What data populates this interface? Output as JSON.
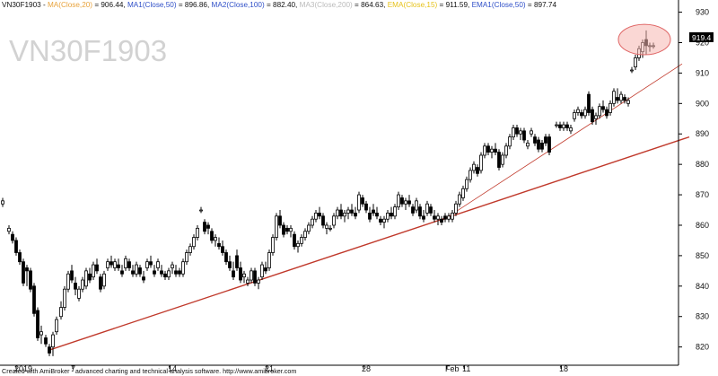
{
  "colors": {
    "background": "#ffffff",
    "trendline": "#c0392b",
    "highlight_fill": "#f5b7b1",
    "highlight_stroke": "#e06666",
    "candle": "#000000",
    "price_label_bg": "#000000",
    "label_black": "#111111",
    "label_ma1": "#e8a33d",
    "label_ma_blue": "#3050c8",
    "label_ma3": "#bbbbbb",
    "label_ema": "#e6c21a",
    "axis_line": "#000000",
    "watermark": "#d2d2d2"
  },
  "header": {
    "parts": [
      {
        "text": "VN30F1903 - ",
        "color": "#111111"
      },
      {
        "text": "MA(Close,20)",
        "color": "#e8a33d"
      },
      {
        "text": " = 906.44, ",
        "color": "#111111"
      },
      {
        "text": "MA1(Close,50)",
        "color": "#3050c8"
      },
      {
        "text": " = 896.86, ",
        "color": "#111111"
      },
      {
        "text": "MA2(Close,100)",
        "color": "#3050c8"
      },
      {
        "text": " = 882.40, ",
        "color": "#111111"
      },
      {
        "text": "MA3(Close,200)",
        "color": "#bbbbbb"
      },
      {
        "text": " = 864.63, ",
        "color": "#111111"
      },
      {
        "text": "EMA(Close,15)",
        "color": "#e6c21a"
      },
      {
        "text": " = 911.59, ",
        "color": "#111111"
      },
      {
        "text": "EMA1(Close,50)",
        "color": "#3050c8"
      },
      {
        "text": " = 897.74",
        "color": "#111111"
      }
    ]
  },
  "watermark": "VN30F1903",
  "price_label": "919.4",
  "footer": "Created with AmiBroker - advanced charting and technical analysis software. http://www.amibroker.com",
  "chart_data": {
    "type": "candlestick",
    "symbol": "VN30F1903",
    "y_axis": {
      "side": "right",
      "range": [
        814,
        934
      ],
      "ticks": [
        "820",
        "830",
        "840",
        "850",
        "860",
        "870",
        "880",
        "890",
        "900",
        "910",
        "920",
        "930"
      ]
    },
    "x_axis": {
      "range": [
        0,
        756
      ],
      "ticks": [
        {
          "label": "2019",
          "pos": 18
        },
        {
          "label": "7",
          "pos": 81
        },
        {
          "label": "14",
          "pos": 189
        },
        {
          "label": "21",
          "pos": 297
        },
        {
          "label": "28",
          "pos": 405
        },
        {
          "label": "Feb",
          "pos": 498
        },
        {
          "label": "11",
          "pos": 517
        },
        {
          "label": "18",
          "pos": 625
        }
      ]
    },
    "candles": [
      [
        3,
        867,
        869,
        866,
        868
      ],
      [
        10,
        858,
        860,
        857,
        859
      ],
      [
        14,
        857,
        858,
        854,
        855
      ],
      [
        18,
        855,
        856,
        850,
        851
      ],
      [
        22,
        851,
        852,
        847,
        848
      ],
      [
        26,
        848,
        849,
        840,
        841
      ],
      [
        30,
        846,
        847,
        840,
        845
      ],
      [
        34,
        845,
        846,
        838,
        839
      ],
      [
        38,
        840,
        841,
        830,
        831
      ],
      [
        42,
        832,
        833,
        822,
        823
      ],
      [
        46,
        824,
        827,
        821,
        825
      ],
      [
        51,
        823,
        824,
        820,
        821
      ],
      [
        55,
        820,
        821,
        817,
        818
      ],
      [
        59,
        820,
        825,
        817,
        824
      ],
      [
        63,
        825,
        830,
        824,
        829
      ],
      [
        68,
        830,
        835,
        829,
        833
      ],
      [
        72,
        833,
        840,
        832,
        839
      ],
      [
        76,
        839,
        845,
        838,
        844
      ],
      [
        80,
        845,
        847,
        841,
        842
      ],
      [
        84,
        841,
        843,
        837,
        839
      ],
      [
        88,
        836,
        840,
        835,
        839
      ],
      [
        92,
        839,
        843,
        838,
        842
      ],
      [
        96,
        840,
        846,
        839,
        845
      ],
      [
        100,
        844,
        846,
        841,
        842
      ],
      [
        104,
        843,
        848,
        842,
        847
      ],
      [
        108,
        847,
        849,
        844,
        845
      ],
      [
        112,
        843,
        844,
        838,
        839
      ],
      [
        116,
        840,
        845,
        839,
        844
      ],
      [
        120,
        846,
        849,
        845,
        848
      ],
      [
        124,
        848,
        850,
        846,
        847
      ],
      [
        128,
        846,
        849,
        845,
        848
      ],
      [
        132,
        847,
        849,
        845,
        846
      ],
      [
        136,
        845,
        847,
        843,
        844
      ],
      [
        140,
        846,
        850,
        845,
        849
      ],
      [
        144,
        848,
        849,
        845,
        846
      ],
      [
        148,
        845,
        847,
        843,
        844
      ],
      [
        152,
        844,
        848,
        843,
        847
      ],
      [
        156,
        846,
        847,
        843,
        844
      ],
      [
        160,
        843,
        845,
        841,
        842
      ],
      [
        164,
        846,
        849,
        845,
        848
      ],
      [
        168,
        848,
        850,
        846,
        847
      ],
      [
        172,
        845,
        847,
        843,
        844
      ],
      [
        176,
        846,
        849,
        845,
        848
      ],
      [
        180,
        845,
        847,
        843,
        844
      ],
      [
        184,
        844,
        845,
        842,
        843
      ],
      [
        188,
        843,
        846,
        842,
        845
      ],
      [
        192,
        846,
        848,
        844,
        847
      ],
      [
        196,
        845,
        847,
        843,
        844
      ],
      [
        200,
        845,
        846,
        843,
        844
      ],
      [
        204,
        844,
        849,
        843,
        848
      ],
      [
        208,
        848,
        852,
        847,
        851
      ],
      [
        212,
        851,
        854,
        850,
        853
      ],
      [
        216,
        853,
        857,
        852,
        856
      ],
      [
        220,
        856,
        860,
        855,
        859
      ],
      [
        224,
        865,
        866,
        864,
        865
      ],
      [
        228,
        861,
        862,
        857,
        858
      ],
      [
        232,
        860,
        861,
        857,
        859
      ],
      [
        236,
        858,
        859,
        854,
        855
      ],
      [
        240,
        855,
        857,
        853,
        856
      ],
      [
        244,
        854,
        856,
        852,
        853
      ],
      [
        248,
        853,
        855,
        850,
        851
      ],
      [
        252,
        851,
        852,
        847,
        848
      ],
      [
        256,
        848,
        850,
        845,
        846
      ],
      [
        260,
        845,
        848,
        842,
        843
      ],
      [
        264,
        850,
        852,
        845,
        846
      ],
      [
        268,
        846,
        848,
        841,
        842
      ],
      [
        272,
        843,
        845,
        841,
        844
      ],
      [
        276,
        841,
        843,
        840,
        842
      ],
      [
        280,
        842,
        846,
        841,
        845
      ],
      [
        284,
        845,
        846,
        840,
        841
      ],
      [
        288,
        841,
        843,
        839,
        842
      ],
      [
        292,
        843,
        848,
        842,
        847
      ],
      [
        296,
        846,
        848,
        844,
        845
      ],
      [
        300,
        846,
        852,
        845,
        851
      ],
      [
        304,
        851,
        857,
        850,
        856
      ],
      [
        308,
        856,
        864,
        855,
        863
      ],
      [
        312,
        863,
        865,
        859,
        860
      ],
      [
        316,
        860,
        861,
        856,
        857
      ],
      [
        320,
        859,
        860,
        857,
        858
      ],
      [
        324,
        858,
        860,
        856,
        859
      ],
      [
        328,
        857,
        858,
        852,
        853
      ],
      [
        332,
        853,
        855,
        851,
        854
      ],
      [
        336,
        854,
        857,
        853,
        856
      ],
      [
        340,
        856,
        859,
        855,
        858
      ],
      [
        344,
        858,
        861,
        857,
        860
      ],
      [
        348,
        860,
        863,
        859,
        862
      ],
      [
        352,
        862,
        865,
        861,
        864
      ],
      [
        356,
        864,
        866,
        862,
        863
      ],
      [
        360,
        863,
        864,
        859,
        860
      ],
      [
        364,
        859,
        861,
        857,
        860
      ],
      [
        368,
        859,
        860,
        858,
        859
      ],
      [
        372,
        860,
        864,
        859,
        863
      ],
      [
        376,
        863,
        866,
        862,
        865
      ],
      [
        380,
        865,
        867,
        862,
        863
      ],
      [
        384,
        863,
        865,
        861,
        864
      ],
      [
        388,
        864,
        866,
        862,
        865
      ],
      [
        392,
        865,
        867,
        863,
        864
      ],
      [
        396,
        864,
        866,
        862,
        863
      ],
      [
        400,
        865,
        871,
        864,
        870
      ],
      [
        404,
        869,
        870,
        866,
        867
      ],
      [
        408,
        867,
        868,
        864,
        865
      ],
      [
        412,
        864,
        866,
        861,
        862
      ],
      [
        416,
        865,
        867,
        863,
        864
      ],
      [
        420,
        864,
        866,
        862,
        863
      ],
      [
        424,
        862,
        863,
        860,
        861
      ],
      [
        428,
        861,
        863,
        859,
        862
      ],
      [
        432,
        862,
        865,
        861,
        864
      ],
      [
        436,
        864,
        866,
        862,
        863
      ],
      [
        440,
        863,
        867,
        862,
        866
      ],
      [
        444,
        866,
        871,
        865,
        870
      ],
      [
        448,
        869,
        870,
        866,
        867
      ],
      [
        452,
        867,
        869,
        865,
        868
      ],
      [
        456,
        868,
        870,
        866,
        867
      ],
      [
        460,
        866,
        867,
        863,
        864
      ],
      [
        464,
        865,
        869,
        864,
        868
      ],
      [
        468,
        866,
        867,
        862,
        863
      ],
      [
        472,
        863,
        865,
        861,
        862
      ],
      [
        476,
        864,
        868,
        863,
        867
      ],
      [
        480,
        866,
        867,
        863,
        864
      ],
      [
        484,
        863,
        865,
        861,
        862
      ],
      [
        488,
        862,
        864,
        860,
        863
      ],
      [
        492,
        862,
        863,
        860,
        861
      ],
      [
        496,
        863,
        864,
        861,
        862
      ],
      [
        500,
        862,
        864,
        861,
        863
      ],
      [
        504,
        862,
        865,
        861,
        864
      ],
      [
        508,
        864,
        868,
        863,
        867
      ],
      [
        512,
        867,
        871,
        866,
        870
      ],
      [
        516,
        869,
        873,
        868,
        872
      ],
      [
        520,
        872,
        876,
        871,
        875
      ],
      [
        524,
        875,
        879,
        874,
        878
      ],
      [
        528,
        878,
        881,
        877,
        880
      ],
      [
        532,
        879,
        880,
        876,
        877
      ],
      [
        536,
        878,
        884,
        877,
        883
      ],
      [
        540,
        883,
        887,
        882,
        886
      ],
      [
        544,
        886,
        887,
        883,
        884
      ],
      [
        548,
        884,
        886,
        882,
        885
      ],
      [
        552,
        885,
        887,
        883,
        884
      ],
      [
        556,
        884,
        885,
        878,
        879
      ],
      [
        560,
        880,
        884,
        879,
        883
      ],
      [
        564,
        883,
        887,
        882,
        886
      ],
      [
        568,
        886,
        890,
        885,
        889
      ],
      [
        572,
        889,
        893,
        888,
        892
      ],
      [
        576,
        892,
        893,
        889,
        890
      ],
      [
        580,
        890,
        892,
        888,
        891
      ],
      [
        584,
        891,
        892,
        887,
        888
      ],
      [
        588,
        886,
        888,
        885,
        887
      ],
      [
        592,
        890,
        892,
        889,
        891
      ],
      [
        596,
        889,
        890,
        886,
        887
      ],
      [
        600,
        888,
        889,
        884,
        885
      ],
      [
        604,
        887,
        888,
        884,
        885
      ],
      [
        608,
        889,
        890,
        886,
        887
      ],
      [
        612,
        889,
        890,
        883,
        884
      ],
      [
        620,
        893,
        894,
        892,
        893
      ],
      [
        624,
        893,
        894,
        891,
        892
      ],
      [
        628,
        892,
        894,
        891,
        893
      ],
      [
        632,
        893,
        894,
        891,
        892
      ],
      [
        636,
        891,
        893,
        890,
        892
      ],
      [
        640,
        895,
        898,
        894,
        897
      ],
      [
        644,
        897,
        899,
        896,
        898
      ],
      [
        648,
        897,
        898,
        895,
        896
      ],
      [
        652,
        896,
        899,
        895,
        898
      ],
      [
        656,
        903,
        904,
        896,
        897
      ],
      [
        660,
        898,
        899,
        893,
        894
      ],
      [
        664,
        895,
        897,
        893,
        896
      ],
      [
        668,
        896,
        900,
        895,
        899
      ],
      [
        672,
        899,
        901,
        897,
        898
      ],
      [
        676,
        898,
        899,
        895,
        896
      ],
      [
        680,
        897,
        901,
        896,
        900
      ],
      [
        684,
        900,
        905,
        899,
        904
      ],
      [
        688,
        902,
        905,
        900,
        901
      ],
      [
        692,
        901,
        904,
        900,
        903
      ],
      [
        696,
        902,
        903,
        900,
        901
      ],
      [
        700,
        900,
        902,
        899,
        901
      ],
      [
        704,
        911,
        912,
        910,
        911
      ],
      [
        708,
        912,
        916,
        911,
        915
      ],
      [
        712,
        915,
        919,
        914,
        918
      ],
      [
        716,
        917,
        921,
        915,
        920
      ],
      [
        720,
        921,
        924,
        916,
        919
      ],
      [
        724,
        919,
        920,
        917,
        919
      ],
      [
        728,
        919,
        920,
        918,
        919
      ]
    ],
    "trendlines": [
      {
        "name": "",
        "x1": 55,
        "y1": 819,
        "x2": 768,
        "y2": 889,
        "width": 1.4
      },
      {
        "name": "",
        "x1": 490,
        "y1": 861,
        "x2": 760,
        "y2": 913,
        "width": 0.8
      }
    ],
    "highlight": {
      "x": 718,
      "y": 921,
      "rx_units": 29,
      "ry_units": 5
    }
  }
}
